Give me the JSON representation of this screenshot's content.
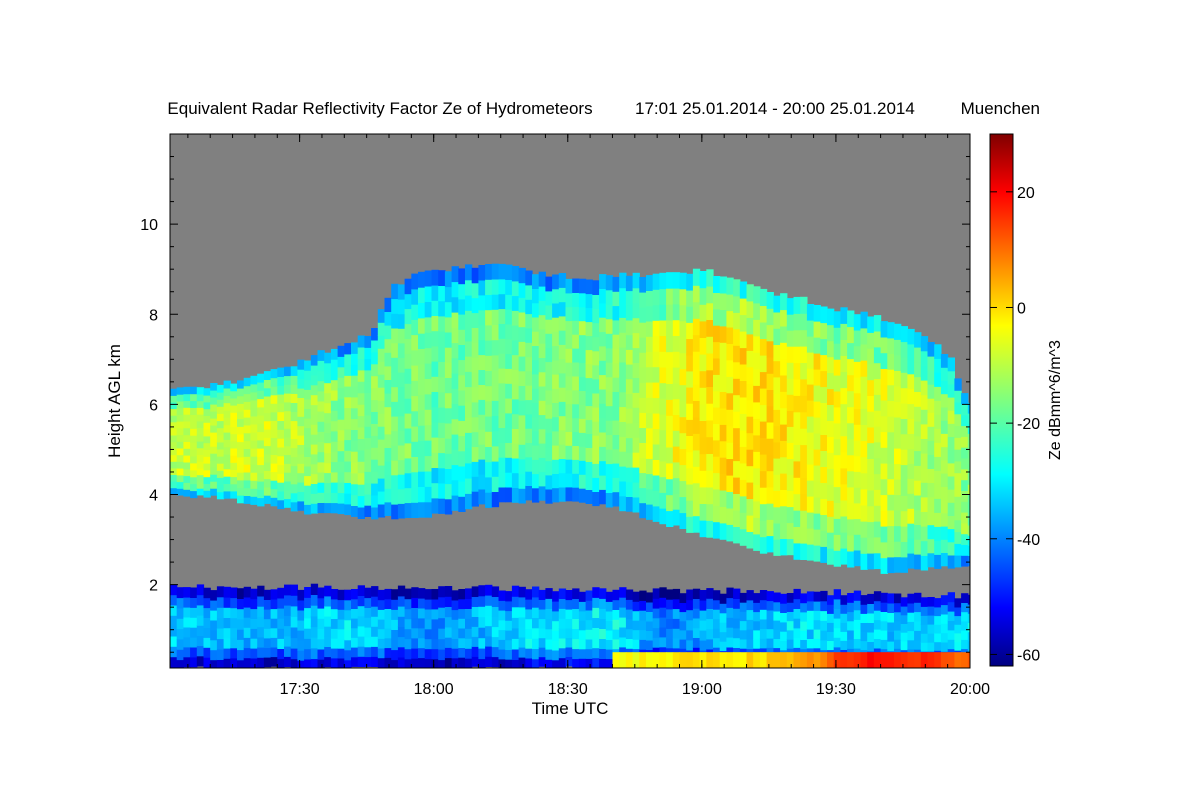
{
  "chart_data": {
    "type": "heatmap",
    "title": "Equivalent Radar Reflectivity Factor Ze of Hydrometeors",
    "time_range": "17:01 25.01.2014 - 20:00 25.01.2014",
    "location": "Muenchen",
    "xlabel": "Time UTC",
    "ylabel": "Height AGL km",
    "x_range_minutes": [
      1021,
      1200
    ],
    "x_ticks": [
      {
        "label": "17:30",
        "minute": 1050
      },
      {
        "label": "18:00",
        "minute": 1080
      },
      {
        "label": "18:30",
        "minute": 1110
      },
      {
        "label": "19:00",
        "minute": 1140
      },
      {
        "label": "19:30",
        "minute": 1170
      },
      {
        "label": "20:00",
        "minute": 1200
      }
    ],
    "ylim": [
      0.15,
      12
    ],
    "y_ticks": [
      2,
      4,
      6,
      8,
      10
    ],
    "colorbar": {
      "label": "Ze dBmm^6/m^3",
      "range": [
        -62,
        30
      ],
      "ticks": [
        -60,
        -40,
        -20,
        0,
        20
      ],
      "colormap": "jet",
      "nodata_color": "#808080"
    },
    "upper_layer": {
      "minutes": [
        1021,
        1030,
        1040,
        1050,
        1060,
        1065,
        1070,
        1075,
        1080,
        1085,
        1090,
        1095,
        1100,
        1105,
        1110,
        1115,
        1120,
        1130,
        1140,
        1150,
        1160,
        1170,
        1180,
        1190,
        1195,
        1199
      ],
      "top_km": [
        6.35,
        6.45,
        6.6,
        7.0,
        7.4,
        7.5,
        8.6,
        8.9,
        9.0,
        9.05,
        9.1,
        9.05,
        9.0,
        8.9,
        8.85,
        8.8,
        8.85,
        8.9,
        9.0,
        8.6,
        8.4,
        8.1,
        7.9,
        7.5,
        7.0,
        6.0
      ],
      "base_km": [
        4.0,
        3.95,
        3.8,
        3.6,
        3.55,
        3.5,
        3.5,
        3.5,
        3.55,
        3.65,
        3.75,
        3.8,
        3.85,
        3.85,
        3.85,
        3.8,
        3.7,
        3.4,
        3.1,
        2.8,
        2.6,
        2.45,
        2.3,
        2.35,
        2.4,
        2.4
      ],
      "core_minutes": [
        1021,
        1040,
        1060,
        1080,
        1100,
        1120,
        1130,
        1140,
        1150,
        1160,
        1170,
        1180,
        1190,
        1199
      ],
      "core_dbz": [
        -10,
        -8,
        -15,
        -18,
        -17,
        -15,
        -8,
        -3,
        -2,
        -4,
        -6,
        -8,
        -12,
        -15
      ]
    },
    "lower_layer": {
      "minutes": [
        1021,
        1080,
        1120,
        1160,
        1199
      ],
      "top_km": [
        1.95,
        1.95,
        1.9,
        1.85,
        1.75
      ],
      "base_km": [
        0.15,
        0.15,
        0.15,
        0.15,
        0.15
      ],
      "core_minutes": [
        1021,
        1040,
        1060,
        1080,
        1100,
        1120,
        1130,
        1140,
        1160,
        1180,
        1199
      ],
      "core_dbz": [
        -32,
        -35,
        -30,
        -38,
        -30,
        -28,
        -40,
        -35,
        -30,
        -32,
        -30
      ]
    },
    "surface_echo": {
      "minutes": [
        1120,
        1160,
        1170,
        1180,
        1190,
        1199
      ],
      "dbz": [
        -5,
        0,
        12,
        18,
        15,
        10
      ]
    }
  }
}
